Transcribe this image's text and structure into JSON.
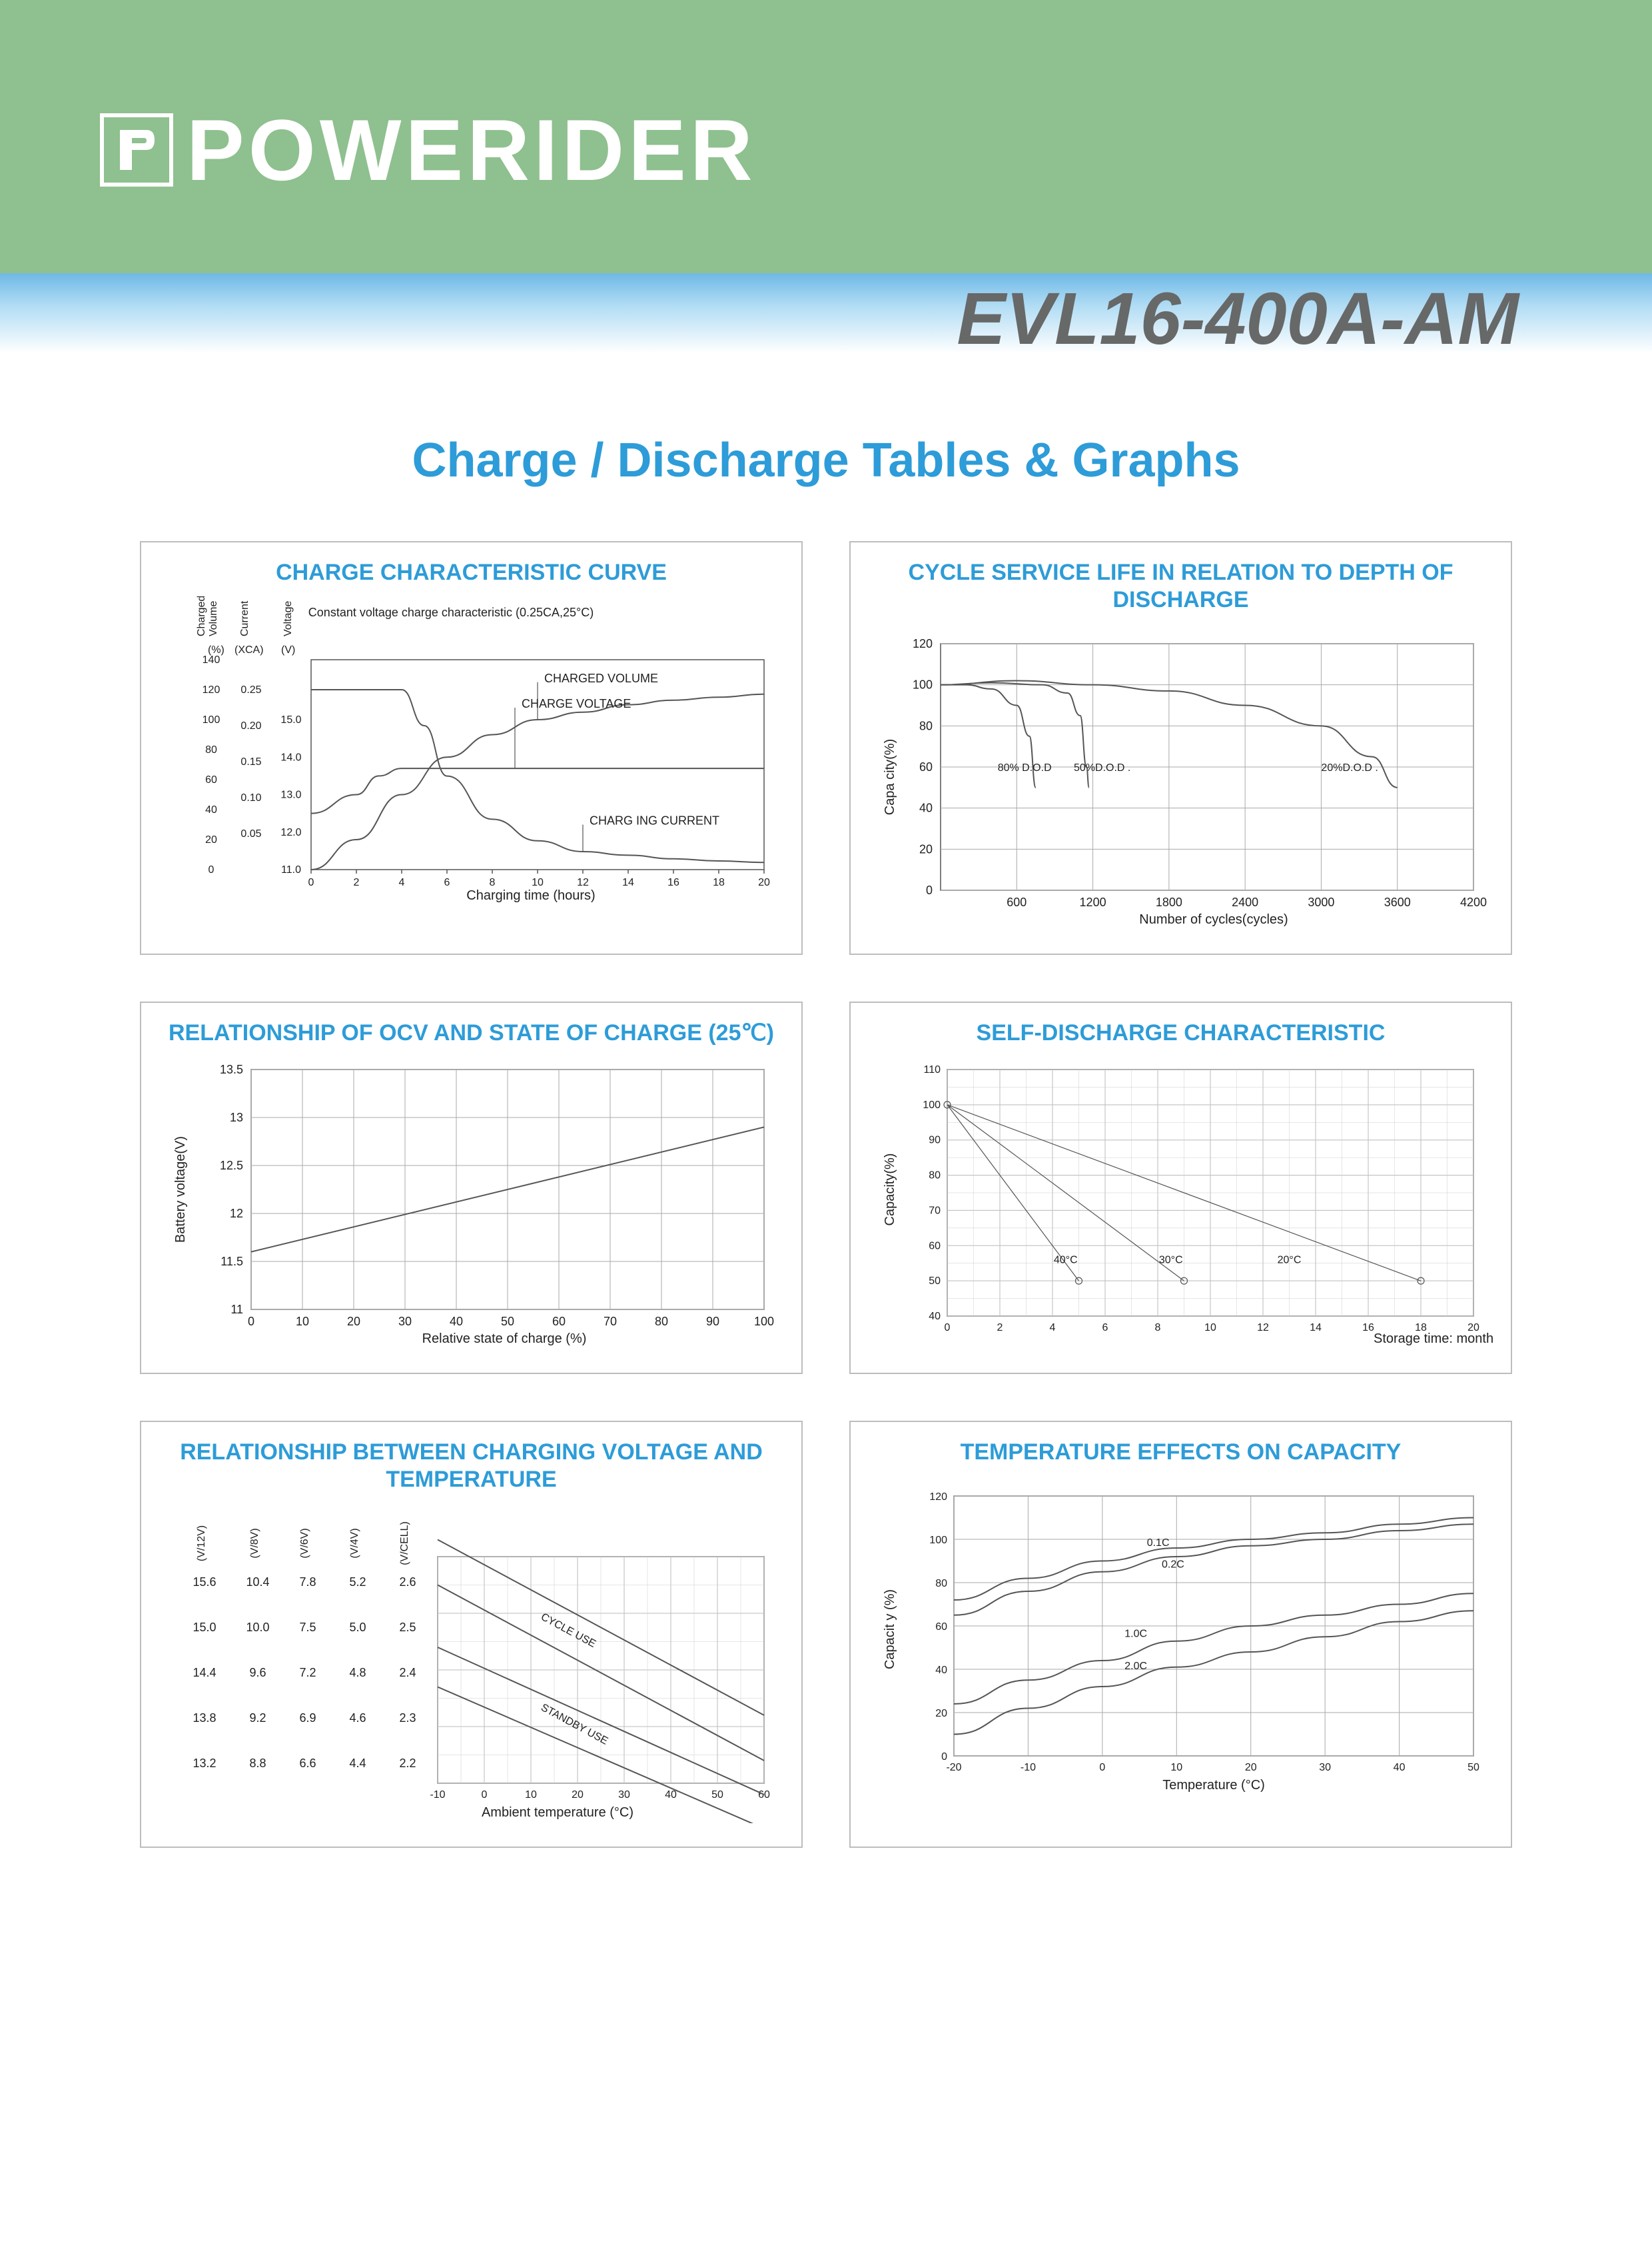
{
  "brand": {
    "name": "POWERIDER"
  },
  "model": "EVL16-400A-AM",
  "main_title": "Charge / Discharge Tables & Graphs",
  "cards": {
    "charge_curve": {
      "title": "CHARGE CHARACTERISTIC CURVE",
      "subtitle": "Constant voltage charge characteristic (0.25CA,25°C)",
      "x_label": "Charging time (hours)",
      "x_ticks": [
        0,
        2,
        4,
        6,
        8,
        10,
        12,
        14,
        16,
        18,
        20
      ],
      "y1": {
        "header1": "Charged",
        "header2": "Volume",
        "unit": "(%)",
        "ticks": [
          0,
          20,
          40,
          60,
          80,
          100,
          120,
          140
        ]
      },
      "y2": {
        "header": "Current",
        "unit": "(XCA)",
        "ticks": [
          0,
          0.05,
          0.1,
          0.15,
          0.2,
          0.25
        ]
      },
      "y3": {
        "header": "Voltage",
        "unit": "(V)",
        "ticks": [
          11.0,
          12.0,
          13.0,
          14.0,
          15.0
        ]
      },
      "series_labels": {
        "vol": "CHARGED  VOLUME",
        "volt": "CHARGE  VOLTAGE",
        "curr": "CHARG ING  CURRENT"
      },
      "charged_volume": [
        [
          0,
          0
        ],
        [
          2,
          20
        ],
        [
          4,
          50
        ],
        [
          6,
          75
        ],
        [
          8,
          90
        ],
        [
          10,
          100
        ],
        [
          12,
          105
        ],
        [
          14,
          110
        ],
        [
          16,
          113
        ],
        [
          18,
          115
        ],
        [
          20,
          117
        ]
      ],
      "charge_voltage": [
        [
          0,
          12.5
        ],
        [
          2,
          13.0
        ],
        [
          3,
          13.5
        ],
        [
          4,
          13.7
        ],
        [
          6,
          13.7
        ],
        [
          20,
          13.7
        ]
      ],
      "charging_current": [
        [
          0,
          0.25
        ],
        [
          4,
          0.25
        ],
        [
          5,
          0.2
        ],
        [
          6,
          0.13
        ],
        [
          8,
          0.07
        ],
        [
          10,
          0.04
        ],
        [
          12,
          0.025
        ],
        [
          14,
          0.02
        ],
        [
          16,
          0.015
        ],
        [
          18,
          0.012
        ],
        [
          20,
          0.01
        ]
      ]
    },
    "cycle_life": {
      "title": "CYCLE SERVICE LIFE IN RELATION TO DEPTH OF DISCHARGE",
      "x_label": "Number of cycles(cycles)",
      "y_label": "Capa city(%)",
      "x_ticks": [
        600,
        1200,
        1800,
        2400,
        3000,
        3600,
        4200
      ],
      "y_ticks": [
        0,
        20,
        40,
        60,
        80,
        100,
        120
      ],
      "series": {
        "dod80": {
          "label": "80% D.O.D",
          "data": [
            [
              0,
              100
            ],
            [
              200,
              100
            ],
            [
              400,
              98
            ],
            [
              600,
              90
            ],
            [
              700,
              75
            ],
            [
              750,
              50
            ]
          ]
        },
        "dod50": {
          "label": "50%D.O.D .",
          "data": [
            [
              0,
              100
            ],
            [
              400,
              101
            ],
            [
              800,
              100
            ],
            [
              1000,
              96
            ],
            [
              1100,
              85
            ],
            [
              1150,
              60
            ],
            [
              1170,
              50
            ]
          ]
        },
        "dod20": {
          "label": "20%D.O.D .",
          "data": [
            [
              0,
              100
            ],
            [
              600,
              102
            ],
            [
              1200,
              100
            ],
            [
              1800,
              97
            ],
            [
              2400,
              90
            ],
            [
              3000,
              80
            ],
            [
              3400,
              65
            ],
            [
              3600,
              50
            ]
          ]
        }
      }
    },
    "ocv_soc": {
      "title": "RELATIONSHIP OF OCV AND STATE OF CHARGE (25℃)",
      "x_label": "Relative   state  of charge (%)",
      "y_label": "Battery  voltage(V)",
      "x_ticks": [
        0,
        10,
        20,
        30,
        40,
        50,
        60,
        70,
        80,
        90,
        100
      ],
      "y_ticks": [
        11,
        11.5,
        12,
        12.5,
        13,
        13.5
      ],
      "data": [
        [
          0,
          11.6
        ],
        [
          100,
          12.9
        ]
      ]
    },
    "self_discharge": {
      "title": "SELF-DISCHARGE CHARACTERISTIC",
      "x_label": "Storage  time: months",
      "y_label": "Capacity(%)",
      "x_ticks": [
        0,
        2,
        4,
        6,
        8,
        10,
        12,
        14,
        16,
        18,
        20
      ],
      "y_ticks": [
        40,
        50,
        60,
        70,
        80,
        90,
        100,
        110
      ],
      "series": {
        "t40": {
          "label": "40°C",
          "data": [
            [
              0,
              100
            ],
            [
              5,
              50
            ]
          ]
        },
        "t30": {
          "label": "30°C",
          "data": [
            [
              0,
              100
            ],
            [
              9,
              50
            ]
          ]
        },
        "t20": {
          "label": "20°C",
          "data": [
            [
              0,
              100
            ],
            [
              18,
              50
            ]
          ]
        }
      }
    },
    "cv_temp": {
      "title": "RELATIONSHIP BETWEEN CHARGING VOLTAGE AND TEMPERATURE",
      "x_label": "Ambient  temperature  (°C)",
      "x_ticks": [
        -10,
        0,
        10,
        20,
        30,
        40,
        50,
        60
      ],
      "col_headers": [
        "(V/12V)",
        "(V/8V)",
        "(V/6V)",
        "(V/4V)",
        "(V/CELL)"
      ],
      "rows": [
        [
          "15.6",
          "10.4",
          "7.8",
          "5.2",
          "2.6"
        ],
        [
          "15.0",
          "10.0",
          "7.5",
          "5.0",
          "2.5"
        ],
        [
          "14.4",
          "9.6",
          "7.2",
          "4.8",
          "2.4"
        ],
        [
          "13.8",
          "9.2",
          "6.9",
          "4.6",
          "2.3"
        ],
        [
          "13.2",
          "8.8",
          "6.6",
          "4.4",
          "2.2"
        ]
      ],
      "series": {
        "cycle": {
          "label": "CYCLE USE",
          "upper": [
            [
              -10,
              2.63
            ],
            [
              60,
              2.32
            ]
          ],
          "lower": [
            [
              -10,
              2.55
            ],
            [
              60,
              2.24
            ]
          ]
        },
        "standby": {
          "label": "STANDBY USE",
          "upper": [
            [
              -10,
              2.44
            ],
            [
              60,
              2.18
            ]
          ],
          "lower": [
            [
              -10,
              2.37
            ],
            [
              60,
              2.12
            ]
          ]
        }
      }
    },
    "temp_cap": {
      "title": "TEMPERATURE EFFECTS ON CAPACITY",
      "x_label": "Temperature (°C)",
      "y_label": "Capacit y (%)",
      "x_ticks": [
        -20,
        -10,
        0,
        10,
        20,
        30,
        40,
        50
      ],
      "y_ticks": [
        0,
        20,
        40,
        60,
        80,
        100,
        120
      ],
      "series": {
        "c01": {
          "label": "0.1C",
          "data": [
            [
              -20,
              72
            ],
            [
              -10,
              82
            ],
            [
              0,
              90
            ],
            [
              10,
              96
            ],
            [
              20,
              100
            ],
            [
              30,
              103
            ],
            [
              40,
              107
            ],
            [
              50,
              110
            ]
          ]
        },
        "c02": {
          "label": "0.2C",
          "data": [
            [
              -20,
              65
            ],
            [
              -10,
              76
            ],
            [
              0,
              85
            ],
            [
              10,
              92
            ],
            [
              20,
              97
            ],
            [
              30,
              100
            ],
            [
              40,
              104
            ],
            [
              50,
              107
            ]
          ]
        },
        "c10": {
          "label": "1.0C",
          "data": [
            [
              -20,
              24
            ],
            [
              -10,
              35
            ],
            [
              0,
              44
            ],
            [
              10,
              53
            ],
            [
              20,
              60
            ],
            [
              30,
              65
            ],
            [
              40,
              70
            ],
            [
              50,
              75
            ]
          ]
        },
        "c20": {
          "label": "2.0C",
          "data": [
            [
              -20,
              10
            ],
            [
              -10,
              22
            ],
            [
              0,
              32
            ],
            [
              10,
              41
            ],
            [
              20,
              48
            ],
            [
              30,
              55
            ],
            [
              40,
              62
            ],
            [
              50,
              67
            ]
          ]
        }
      }
    }
  },
  "colors": {
    "header_green": "#8fc08f",
    "gradient_blue": "#6eb8e6",
    "title_blue": "#2d9cd8",
    "model_gray": "#676868",
    "card_border": "#bdbdbd",
    "axis": "#555555",
    "grid": "#aaaaaa"
  }
}
